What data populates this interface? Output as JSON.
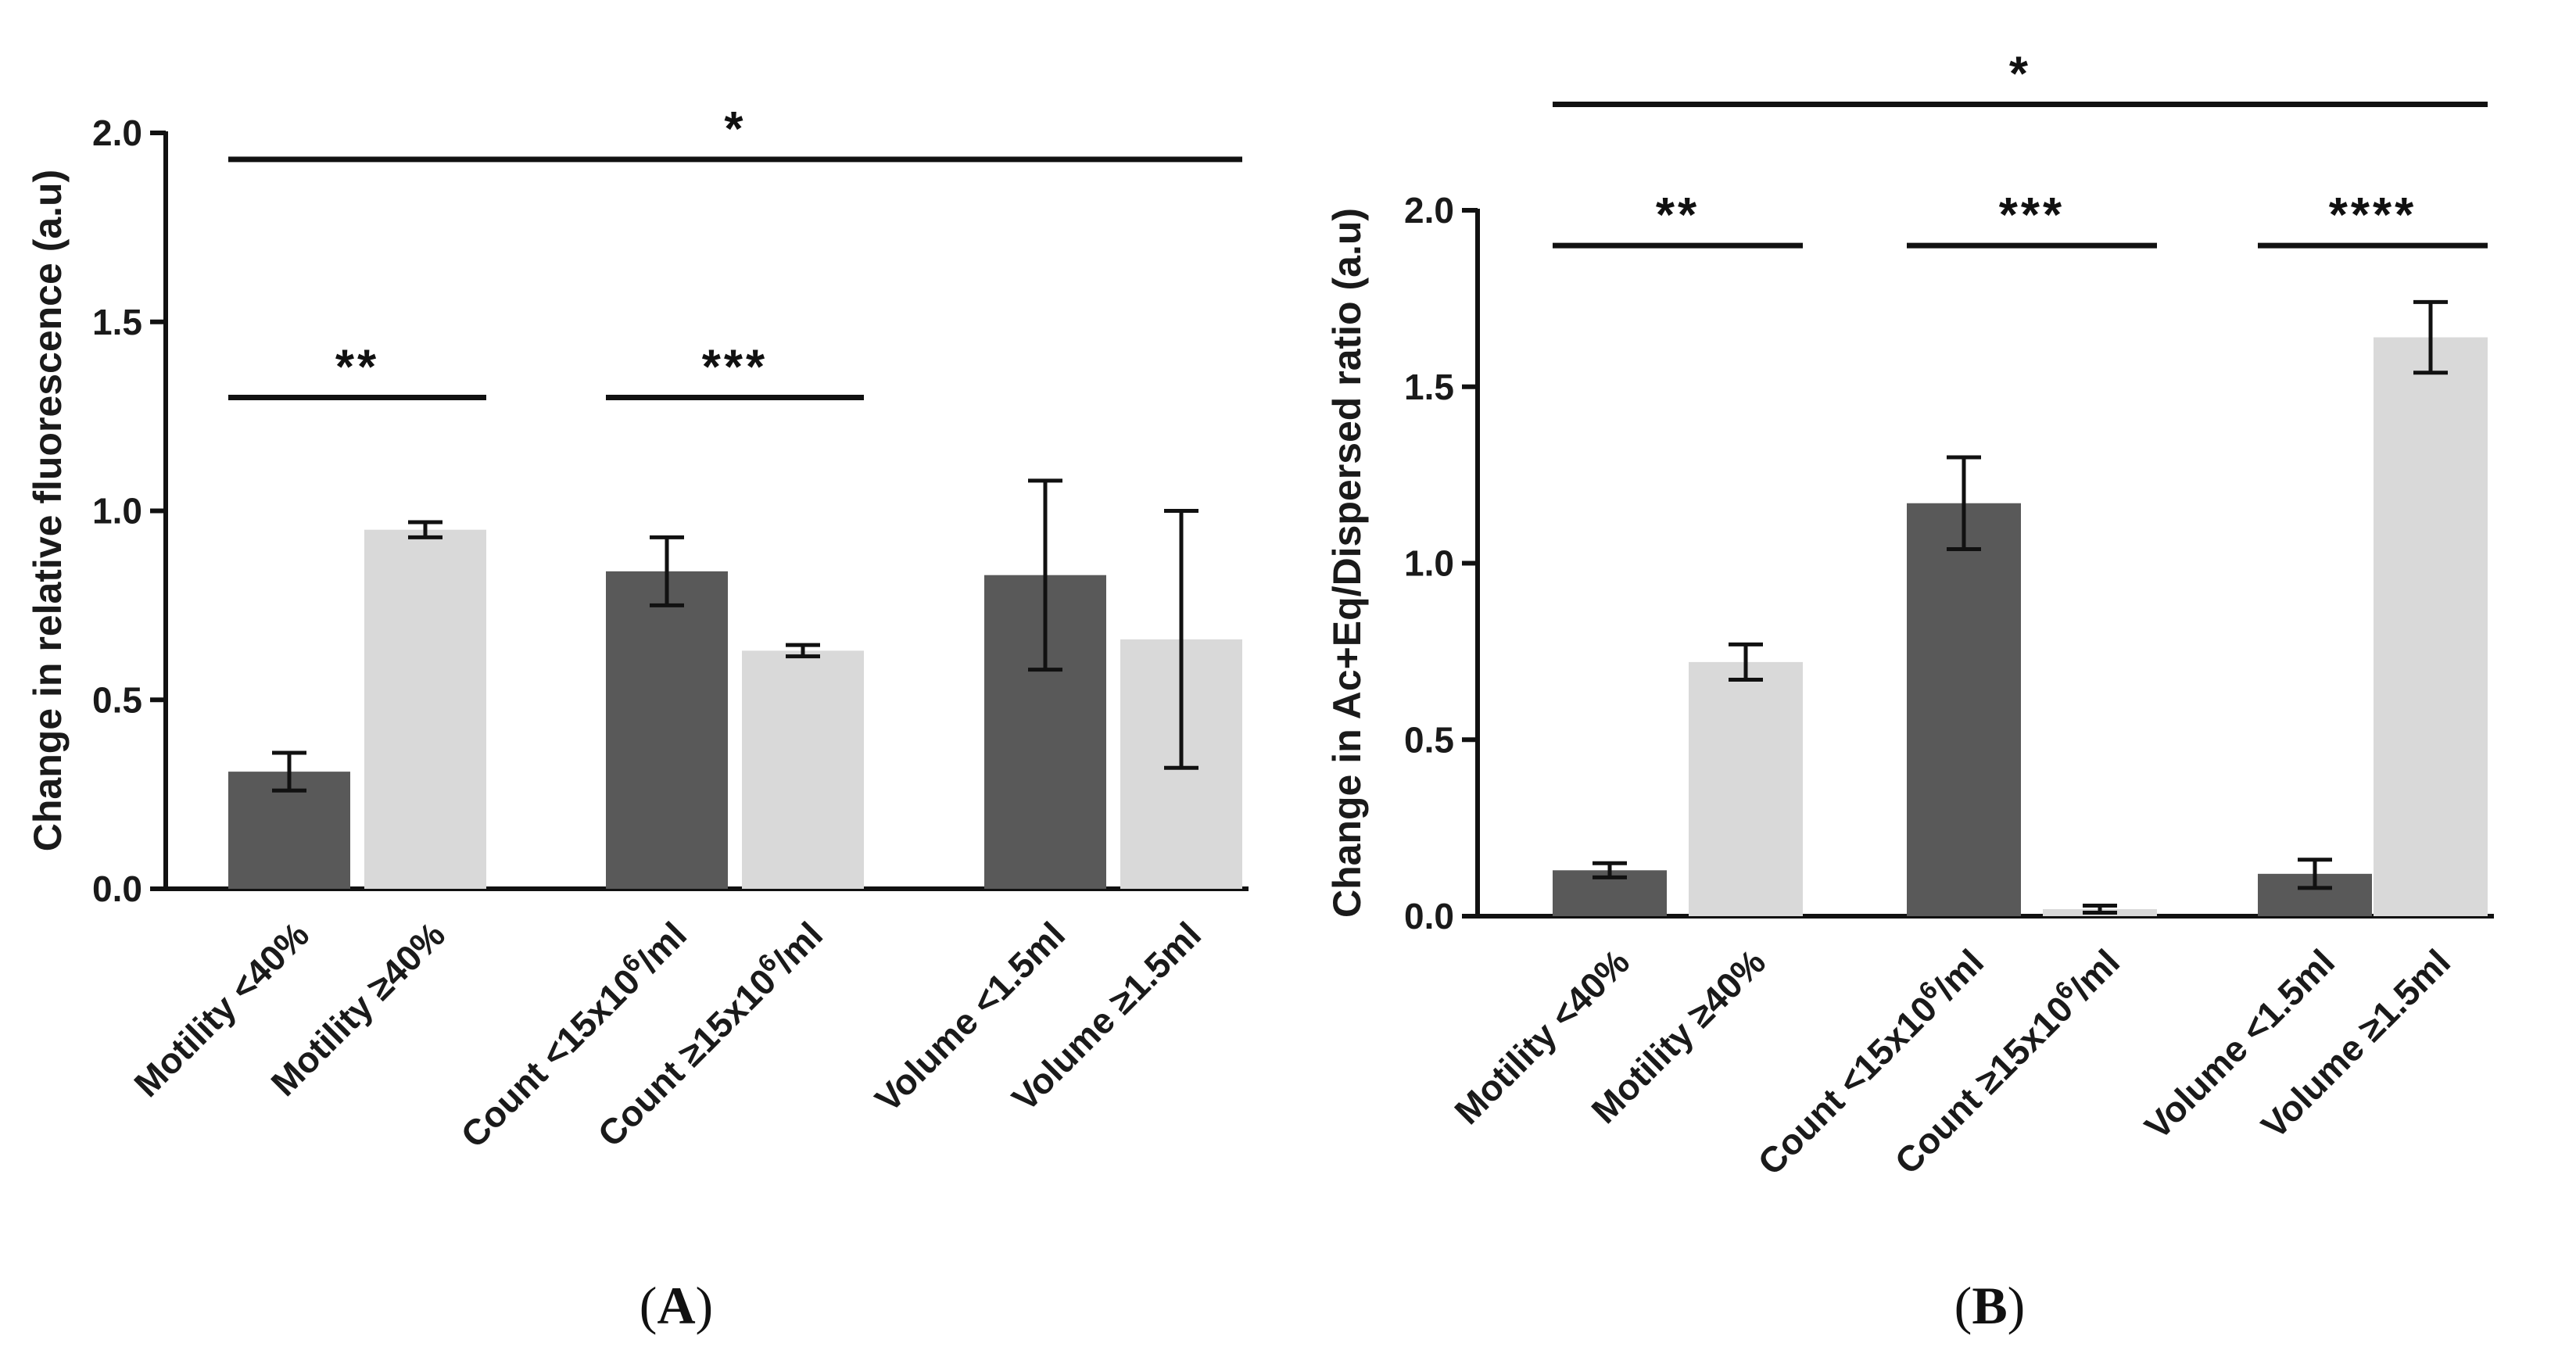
{
  "colors": {
    "dark": "#595959",
    "light": "#d9d9d9",
    "ink": "#111111"
  },
  "chart_data": [
    {
      "type": "bar",
      "panel": "A",
      "ylabel": "Change in relative fluorescence (a.u)",
      "ylim": [
        0,
        2.0
      ],
      "yticks": [
        "0.0",
        "0.5",
        "1.0",
        "1.5",
        "2.0"
      ],
      "categories": [
        "Motility <40%",
        "Motility ≥40%",
        "Count <15x10⁶/ml",
        "Count ≥15x10⁶/ml",
        "Volume <1.5ml",
        "Volume ≥1.5ml"
      ],
      "values": [
        0.31,
        0.95,
        0.84,
        0.63,
        0.83,
        0.66
      ],
      "errors": [
        0.05,
        0.02,
        0.09,
        0.015,
        0.25,
        0.34
      ],
      "bar_colors": [
        "dark",
        "light",
        "dark",
        "light",
        "dark",
        "light"
      ],
      "significance": [
        {
          "from": 0,
          "to": 1,
          "y": 1.3,
          "label": "**"
        },
        {
          "from": 2,
          "to": 3,
          "y": 1.3,
          "label": "***"
        },
        {
          "from": 0,
          "to": 5,
          "y": 1.93,
          "label": "*"
        }
      ]
    },
    {
      "type": "bar",
      "panel": "B",
      "ylabel": "Change in Ac+Eq/Dispersed ratio (a.u)",
      "ylim": [
        0,
        2.0
      ],
      "yticks": [
        "0.0",
        "0.5",
        "1.0",
        "1.5",
        "2.0"
      ],
      "categories": [
        "Motility <40%",
        "Motility ≥40%",
        "Count <15x10⁶/ml",
        "Count ≥15x10⁶/ml",
        "Volume <1.5ml",
        "Volume ≥1.5ml"
      ],
      "values": [
        0.13,
        0.72,
        1.17,
        0.02,
        0.12,
        1.64
      ],
      "errors": [
        0.02,
        0.05,
        0.13,
        0.01,
        0.04,
        0.1
      ],
      "bar_colors": [
        "dark",
        "light",
        "dark",
        "light",
        "dark",
        "light"
      ],
      "significance": [
        {
          "from": 0,
          "to": 1,
          "y": 1.9,
          "label": "**"
        },
        {
          "from": 2,
          "to": 3,
          "y": 1.9,
          "label": "***"
        },
        {
          "from": 4,
          "to": 5,
          "y": 1.9,
          "label": "****"
        },
        {
          "from": 0,
          "to": 5,
          "y": 2.3,
          "label": "*"
        }
      ]
    }
  ]
}
